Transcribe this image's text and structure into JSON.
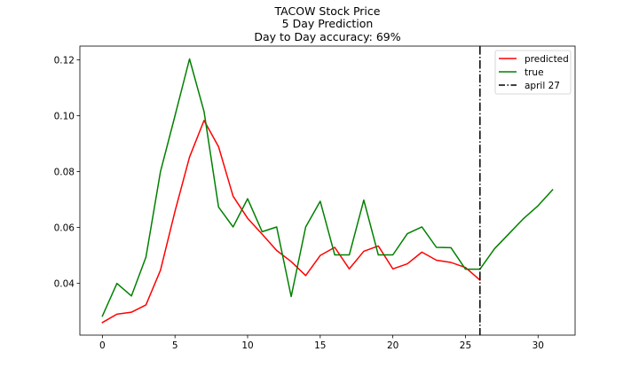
{
  "chart_data": {
    "type": "line",
    "title_lines": [
      "TACOW Stock Price",
      "5 Day Prediction",
      "Day to Day accuracy: 69%"
    ],
    "xlabel": "",
    "ylabel": "",
    "xlim": [
      -1.55,
      32.55
    ],
    "ylim": [
      0.0215,
      0.1249
    ],
    "x_ticks": [
      0,
      5,
      10,
      15,
      20,
      25,
      30
    ],
    "x_tick_labels": [
      "0",
      "5",
      "10",
      "15",
      "20",
      "25",
      "30"
    ],
    "y_ticks": [
      0.04,
      0.06,
      0.08,
      0.1,
      0.12
    ],
    "y_tick_labels": [
      "0.04",
      "0.06",
      "0.08",
      "0.10",
      "0.12"
    ],
    "grid": false,
    "legend_position": "top-right",
    "series": [
      {
        "name": "predicted",
        "color": "#ff0000",
        "style": "solid",
        "x": [
          0,
          1,
          2,
          3,
          4,
          5,
          6,
          7,
          8,
          9,
          10,
          11,
          12,
          13,
          14,
          15,
          16,
          17,
          18,
          19,
          20,
          21,
          22,
          23,
          24,
          25,
          26
        ],
        "values": [
          0.026,
          0.029,
          0.0297,
          0.0323,
          0.0447,
          0.0658,
          0.0852,
          0.0983,
          0.0889,
          0.0712,
          0.0633,
          0.0576,
          0.0518,
          0.0478,
          0.0428,
          0.05,
          0.0529,
          0.0452,
          0.0515,
          0.0534,
          0.0452,
          0.047,
          0.0512,
          0.0483,
          0.0475,
          0.0457,
          0.0412
        ]
      },
      {
        "name": "true",
        "color": "#008000",
        "style": "solid",
        "x": [
          0,
          1,
          2,
          3,
          4,
          5,
          6,
          7,
          8,
          9,
          10,
          11,
          12,
          13,
          14,
          15,
          16,
          17,
          18,
          19,
          20,
          21,
          22,
          23,
          24,
          25,
          26,
          27,
          28,
          29,
          30,
          31
        ],
        "values": [
          0.0283,
          0.04,
          0.0355,
          0.0494,
          0.08,
          0.1,
          0.1203,
          0.1015,
          0.0673,
          0.0602,
          0.0703,
          0.0585,
          0.0602,
          0.0353,
          0.0602,
          0.0694,
          0.0502,
          0.0502,
          0.0698,
          0.0502,
          0.0502,
          0.0578,
          0.0602,
          0.0529,
          0.0528,
          0.0451,
          0.0451,
          0.0524,
          0.0578,
          0.0632,
          0.0678,
          0.0735
        ]
      }
    ],
    "vline": {
      "name": "april 27",
      "x": 26,
      "color": "#000000",
      "style": "dashdot"
    }
  }
}
